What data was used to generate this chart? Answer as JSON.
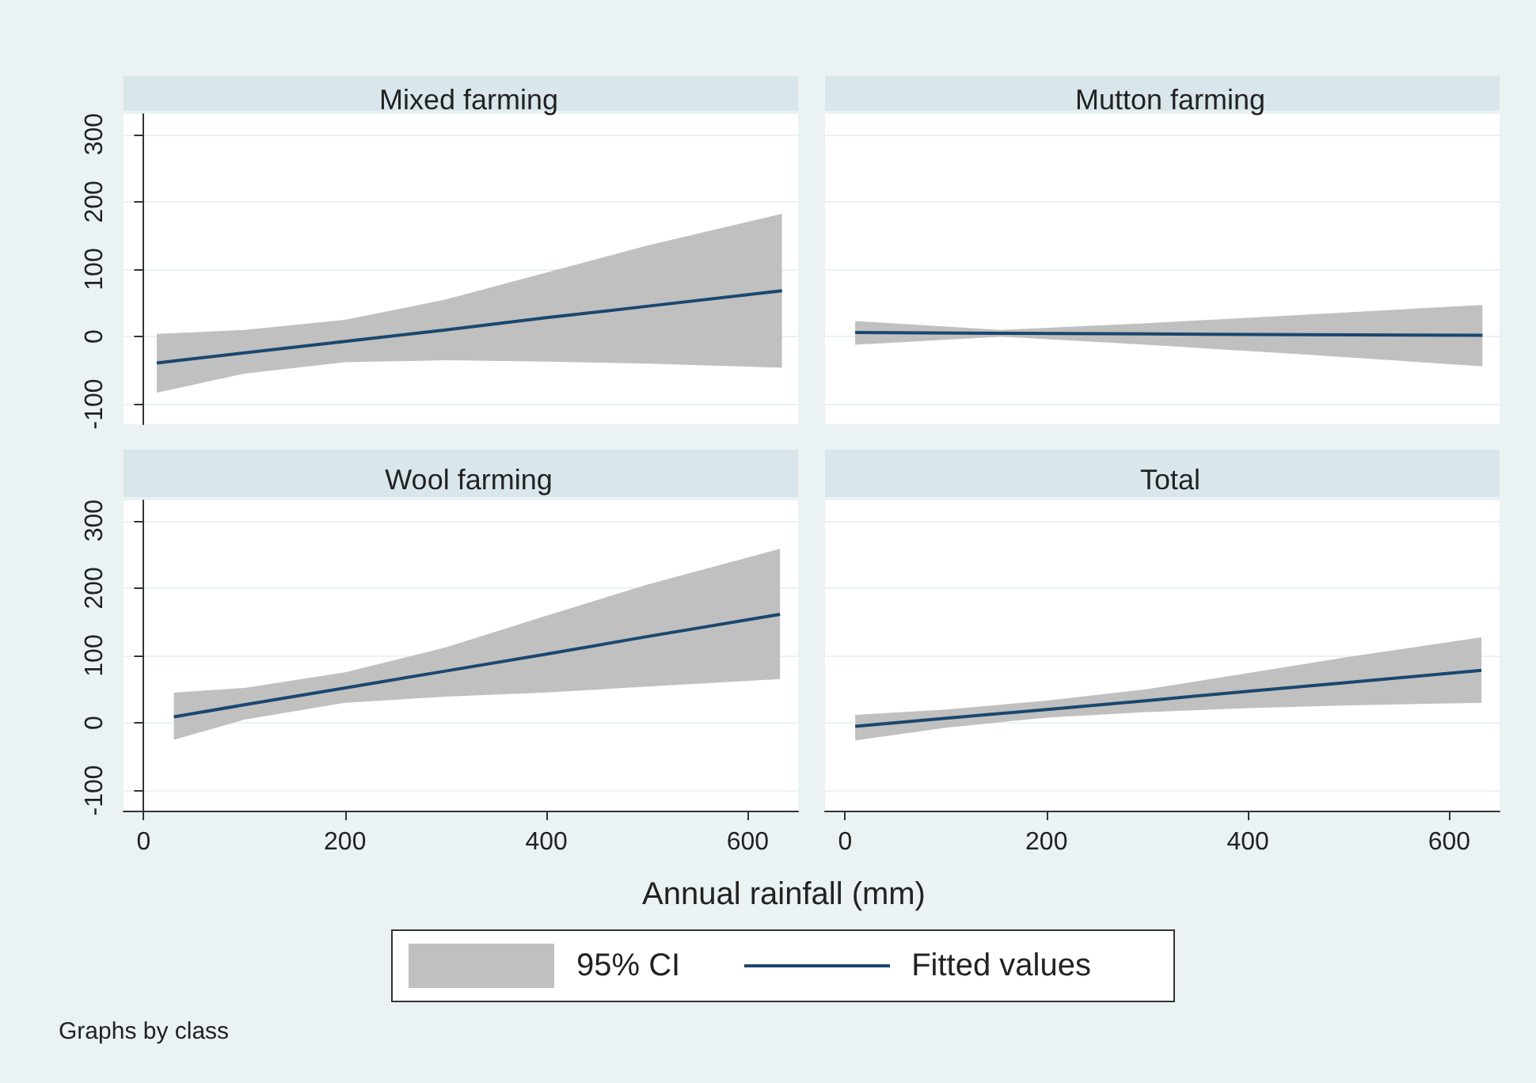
{
  "chart_data": [
    {
      "type": "line",
      "title": "Mixed farming",
      "x": [
        13,
        100,
        200,
        300,
        400,
        500,
        634
      ],
      "series": [
        {
          "color": "#1a476f",
          "values": [
            -39,
            -24,
            -7,
            10,
            28,
            45,
            68
          ],
          "lower": [
            -83,
            -55,
            -38,
            -35,
            -37,
            -40,
            -46
          ],
          "upper": [
            4,
            10,
            25,
            55,
            95,
            135,
            182
          ]
        }
      ],
      "xlim": [
        -20,
        650
      ],
      "xticks": [
        0,
        200,
        400,
        600
      ],
      "ylim": [
        -130,
        330
      ],
      "yticks": [
        -100,
        0,
        100,
        200,
        300
      ],
      "grid": "y",
      "tick_labels": "y"
    },
    {
      "type": "line",
      "title": "Mutton farming",
      "x": [
        10,
        155,
        300,
        450,
        633
      ],
      "series": [
        {
          "color": "#1a476f",
          "values": [
            6,
            5,
            4,
            3,
            2
          ],
          "lower": [
            -12,
            0,
            -12,
            -26,
            -44
          ],
          "upper": [
            23,
            10,
            20,
            32,
            47
          ]
        }
      ],
      "xlim": [
        -20,
        650
      ],
      "xticks": [
        0,
        200,
        400,
        600
      ],
      "ylim": [
        -130,
        330
      ],
      "yticks": [
        -100,
        0,
        100,
        200,
        300
      ],
      "grid": "y",
      "tick_labels": false
    },
    {
      "type": "line",
      "title": "Wool farming",
      "xlabel": "Annual rainfall (mm)",
      "x": [
        30,
        100,
        200,
        300,
        400,
        500,
        632
      ],
      "series": [
        {
          "color": "#1a476f",
          "values": [
            9,
            27,
            52,
            77,
            102,
            128,
            161
          ],
          "lower": [
            -25,
            5,
            30,
            39,
            45,
            54,
            65
          ],
          "upper": [
            45,
            52,
            75,
            112,
            159,
            205,
            258
          ]
        }
      ],
      "xlim": [
        -20,
        650
      ],
      "xticks": [
        0,
        200,
        400,
        600
      ],
      "ylim": [
        -130,
        330
      ],
      "yticks": [
        -100,
        0,
        100,
        200,
        300
      ],
      "grid": "y"
    },
    {
      "type": "line",
      "title": "Total",
      "x": [
        10,
        100,
        200,
        300,
        400,
        500,
        632
      ],
      "series": [
        {
          "name": "Fitted values",
          "color": "#1a476f",
          "values": [
            -5,
            7,
            20,
            33,
            47,
            60,
            78
          ],
          "lower": [
            -26,
            -7,
            8,
            16,
            22,
            26,
            30
          ],
          "upper": [
            12,
            20,
            33,
            50,
            74,
            98,
            127
          ]
        }
      ],
      "xlim": [
        -20,
        650
      ],
      "xticks": [
        0,
        200,
        400,
        600
      ],
      "ylim": [
        -130,
        330
      ],
      "yticks": [
        -100,
        0,
        100,
        200,
        300
      ],
      "grid": "y",
      "tick_labels": "x",
      "legend": "bottom",
      "annotations": [
        "95% CI",
        "Graphs by class"
      ]
    }
  ]
}
